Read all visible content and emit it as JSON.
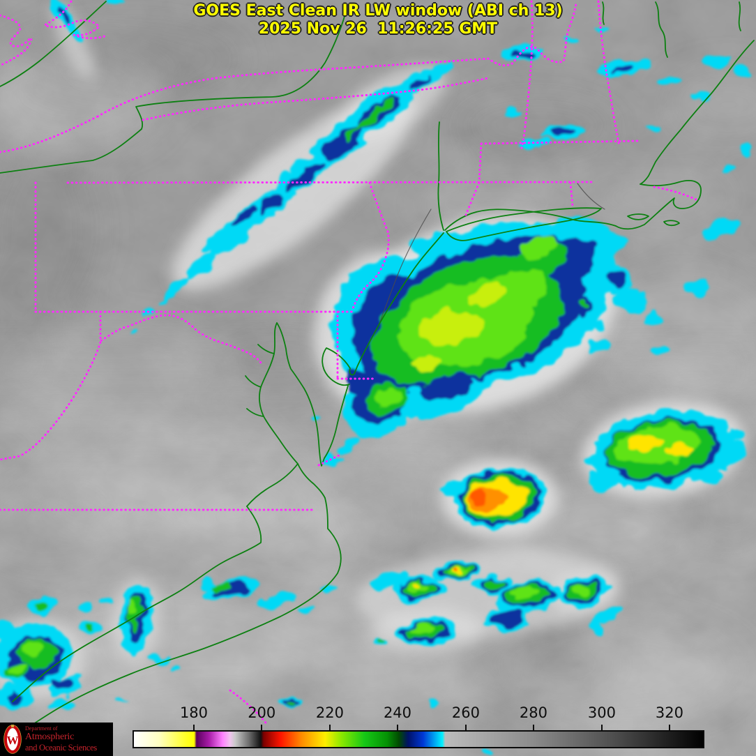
{
  "header": {
    "line1": "GOES East Clean IR LW window (ABI ch 13)",
    "line2": "2025 Nov 26  11:26:25 GMT"
  },
  "colorbar": {
    "tick_labels": [
      "180",
      "200",
      "220",
      "240",
      "260",
      "280",
      "300",
      "320"
    ],
    "tick_positions_pct": [
      10.73,
      22.59,
      34.51,
      46.34,
      58.29,
      70.12,
      82.07,
      93.9
    ],
    "gradient_stops": [
      [
        0,
        "#ffffff"
      ],
      [
        4.5,
        "#ffffc0"
      ],
      [
        9,
        "#ffff2a"
      ],
      [
        10.6,
        "#ffff00"
      ],
      [
        11,
        "#5a005e"
      ],
      [
        13.2,
        "#a81ca8"
      ],
      [
        15.6,
        "#ff82ff"
      ],
      [
        16.9,
        "#f0c4ee"
      ],
      [
        17.8,
        "#c9c9c9"
      ],
      [
        20.2,
        "#6e6e6e"
      ],
      [
        22.3,
        "#101010"
      ],
      [
        22.8,
        "#7c0000"
      ],
      [
        25.8,
        "#ff1500"
      ],
      [
        29.5,
        "#ff8d00"
      ],
      [
        33.6,
        "#ffee00"
      ],
      [
        36.5,
        "#8ae800"
      ],
      [
        40.5,
        "#16c816"
      ],
      [
        44.5,
        "#059105"
      ],
      [
        46.6,
        "#024a02"
      ],
      [
        48.2,
        "#001268"
      ],
      [
        50.8,
        "#0037d4"
      ],
      [
        52.8,
        "#00a2f2"
      ],
      [
        54.2,
        "#00f2ff"
      ],
      [
        54.7,
        "#bcbcbc"
      ],
      [
        70,
        "#8c8c8c"
      ],
      [
        85,
        "#4b4b4b"
      ],
      [
        100,
        "#010101"
      ]
    ]
  },
  "logo": {
    "dept": "Department of",
    "name1": "Atmospheric",
    "name2": "and Oceanic Sciences",
    "monogram": "W",
    "background": "#000000",
    "text_color": "#c5232c",
    "crest_red": "#c5050c"
  },
  "theme": {
    "state_border": "#ff2bff",
    "coastline": "#0c8011",
    "title_text": "#ffff00",
    "background_gray": "#8e8e8e"
  }
}
